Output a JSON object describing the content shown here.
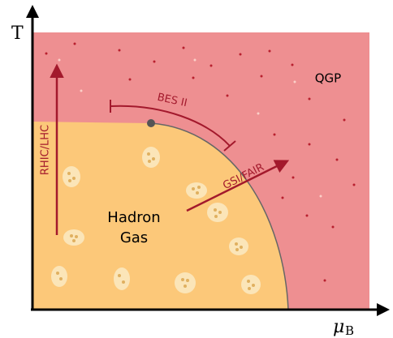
{
  "axes": {
    "y_label": "T",
    "x_label_main": "μ",
    "x_label_sub": "B"
  },
  "regions": {
    "qgp": "QGP",
    "hadron_gas": [
      "Hadron",
      "Gas"
    ]
  },
  "arrows": {
    "rhic_lhc": "RHIC/LHC",
    "bes": "BES II",
    "gsi_fair": "GSI/FAIR"
  }
}
